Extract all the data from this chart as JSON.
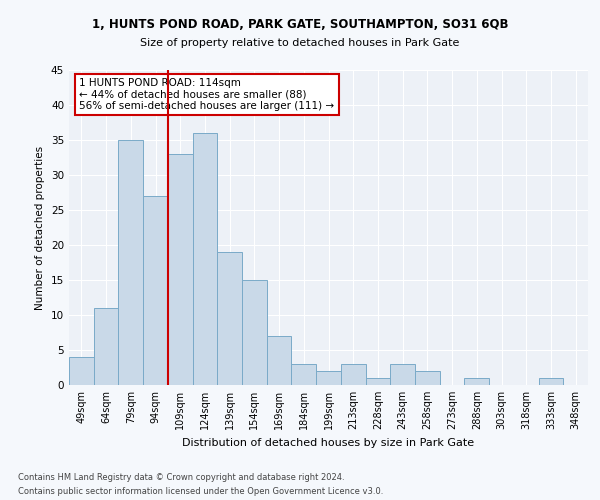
{
  "title1": "1, HUNTS POND ROAD, PARK GATE, SOUTHAMPTON, SO31 6QB",
  "title2": "Size of property relative to detached houses in Park Gate",
  "xlabel": "Distribution of detached houses by size in Park Gate",
  "ylabel": "Number of detached properties",
  "categories": [
    "49sqm",
    "64sqm",
    "79sqm",
    "94sqm",
    "109sqm",
    "124sqm",
    "139sqm",
    "154sqm",
    "169sqm",
    "184sqm",
    "199sqm",
    "213sqm",
    "228sqm",
    "243sqm",
    "258sqm",
    "273sqm",
    "288sqm",
    "303sqm",
    "318sqm",
    "333sqm",
    "348sqm"
  ],
  "values": [
    4,
    11,
    35,
    27,
    33,
    36,
    19,
    15,
    7,
    3,
    2,
    3,
    1,
    3,
    2,
    0,
    1,
    0,
    0,
    1,
    0
  ],
  "bar_color": "#c9d9e8",
  "bar_edge_color": "#7aaac8",
  "property_line_x": 4.5,
  "property_line_color": "#cc0000",
  "annotation_text": "1 HUNTS POND ROAD: 114sqm\n← 44% of detached houses are smaller (88)\n56% of semi-detached houses are larger (111) →",
  "annotation_box_color": "#cc0000",
  "ylim": [
    0,
    45
  ],
  "yticks": [
    0,
    5,
    10,
    15,
    20,
    25,
    30,
    35,
    40,
    45
  ],
  "footer1": "Contains HM Land Registry data © Crown copyright and database right 2024.",
  "footer2": "Contains public sector information licensed under the Open Government Licence v3.0.",
  "fig_bg_color": "#f5f8fc",
  "plot_bg_color": "#edf1f7"
}
